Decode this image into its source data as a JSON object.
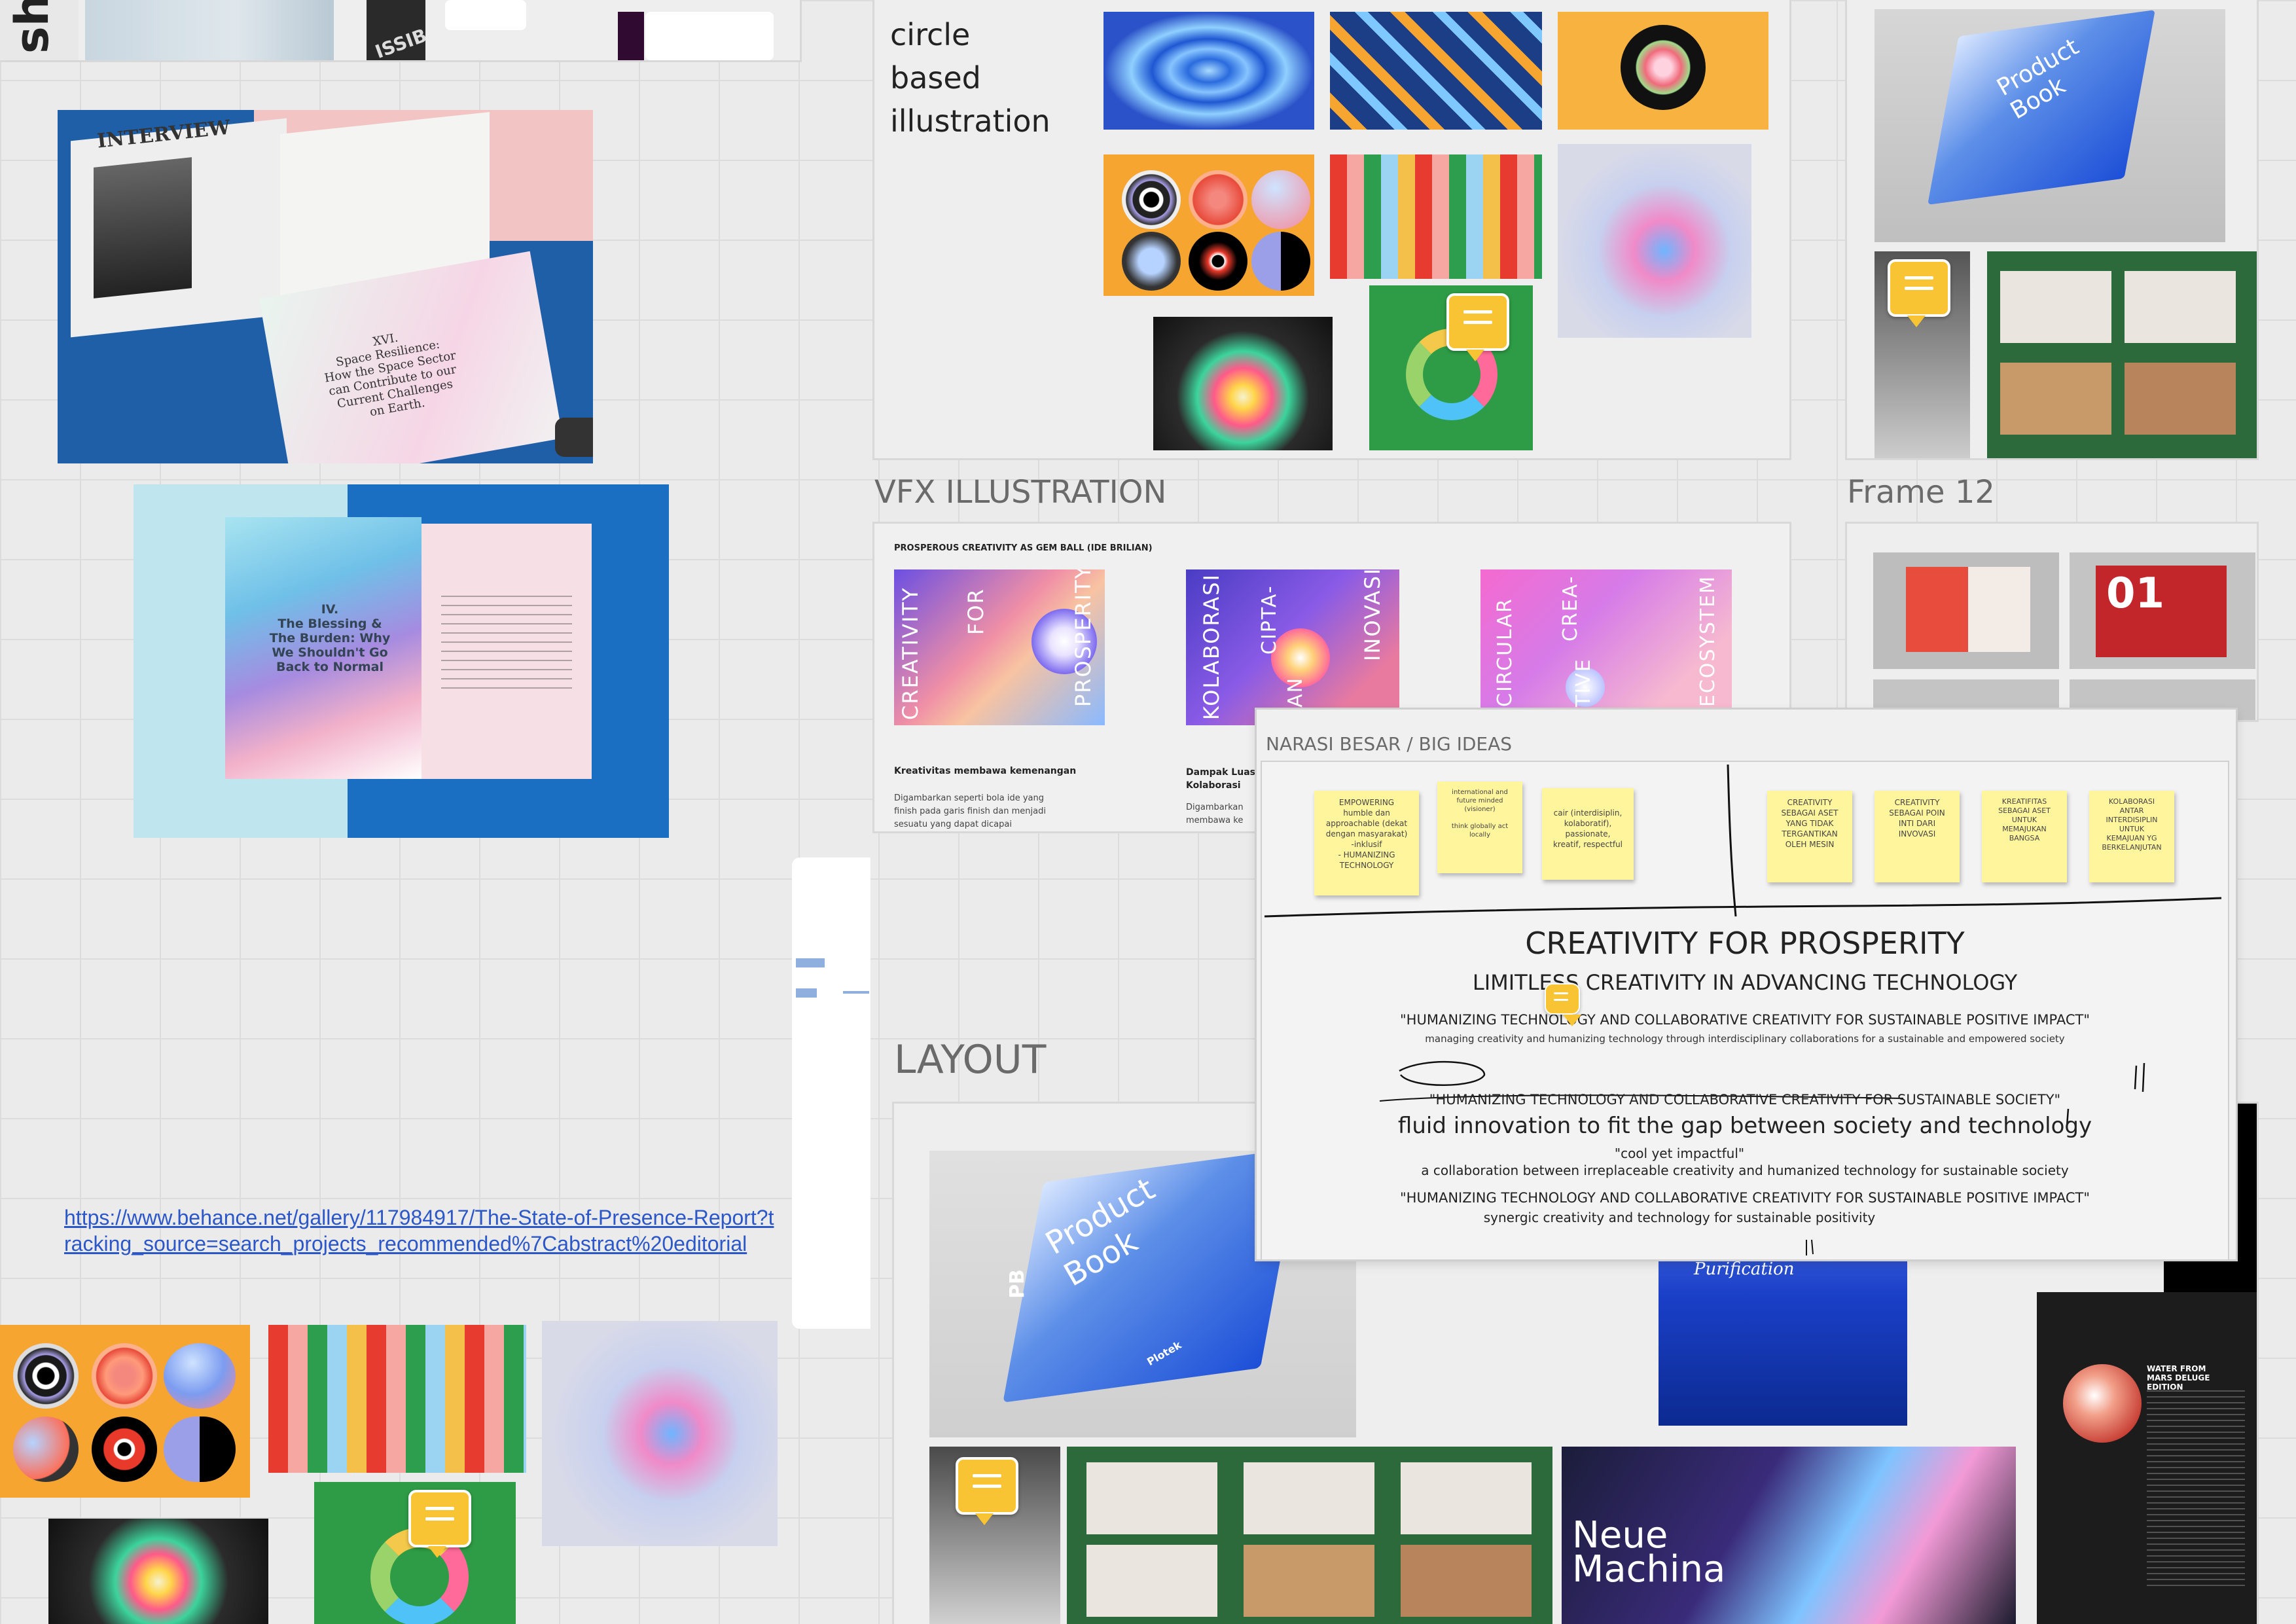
{
  "frames": {
    "circle_title": "circle\nbased\nillustration",
    "vfx_title": "VFX ILLUSTRATION",
    "frame12_title": "Frame 12",
    "layout_title": "LAYOUT",
    "narasi_title": "NARASI BESAR / BIG IDEAS"
  },
  "top_left": {
    "shape_text": "shap",
    "cover_text": "ISSIB"
  },
  "books": {
    "interview_header": "INTERVIEW",
    "chapter_title": "XVI.\nSpace Resilience:\nHow the Space Sector\ncan Contribute to our\nCurrent Challenges\non Earth.",
    "blessing_title": "IV.\nThe Blessing &\nThe Burden: Why\nWe Shouldn't Go\nBack to Normal"
  },
  "link": {
    "url": "https://www.behance.net/gallery/117984917/The-State-of-Presence-Report?tracking_source=search_projects_recommended%7Cabstract%20editorial"
  },
  "vfx": {
    "header": "PROSPEROUS CREATIVITY AS GEM BALL (IDE BRILIAN)",
    "card1_words": [
      "CREATIVITY",
      "FOR",
      "PROSPERITY"
    ],
    "card2_words": [
      "KOLABORASI",
      "CIPTA-",
      "KAN",
      "INOVASI"
    ],
    "card3_words": [
      "CIRCULAR",
      "CREA-",
      "TIVE",
      "ECOSYSTEM"
    ],
    "caption1_title": "Kreativitas membawa kemenangan",
    "caption1_body": "Digambarkan seperti bola ide yang\nfinish pada garis finish dan menjadi\nsesuatu yang dapat dicapai",
    "caption2_title": "Dampak Luas\nKolaborasi",
    "caption2_body": "Digambarkan\nmembawa ke"
  },
  "product_book": {
    "title": "Product Book",
    "brand": "Plotek",
    "side": "PB"
  },
  "neue": {
    "title": "Neue\nMachina",
    "tag": "Purification"
  },
  "dark_poster": {
    "heading": "WATER FROM MARS DELUGE EDITION"
  },
  "big_ideas": {
    "stickies_left": [
      "EMPOWERING\nhumble dan\napproachable (dekat\ndengan masyarakat)\n-inklusif\n- HUMANIZING\nTECHNOLOGY",
      "international and\nfuture minded\n(visioner)\n\nthink globally act\nlocally",
      "cair (interdisiplin,\nkolaboratif),\npassionate,\nkreatif, respectful"
    ],
    "stickies_right": [
      "CREATIVITY\nSEBAGAI ASET\nYANG TIDAK\nTERGANTIKAN\nOLEH MESIN",
      "CREATIVITY\nSEBAGAI POIN\nINTI DARI\nINVOVASI",
      "KREATIFITAS\nSEBAGAI ASET\nUNTUK\nMEMAJUKAN\nBANGSA",
      "KOLABORASI\nANTAR\nINTERDISIPLIN\nUNTUK\nKEMAJUAN YG\nBERKELANJUTAN"
    ],
    "headline": "CREATIVITY FOR PROSPERITY",
    "subhead": "LIMITLESS CREATIVITY IN ADVANCING TECHNOLOGY",
    "quote1": "\"HUMANIZING TECHNOLOGY AND COLLABORATIVE CREATIVITY FOR SUSTAINABLE POSITIVE IMPACT\"",
    "quote1_sub": "managing creativity and humanizing technology through interdisciplinary collaborations for a sustainable and empowered society",
    "quote2": "\"HUMANIZING TECHNOLOGY AND COLLABORATIVE CREATIVITY FOR SUSTAINABLE SOCIETY\"",
    "tagline": "fluid innovation to fit the gap between society and technology",
    "cool": "\"cool yet impactful\"",
    "cool_sub": "a collaboration between irreplaceable creativity and humanized technology for sustainable society",
    "quote3": "\"HUMANIZING TECHNOLOGY AND COLLABORATIVE CREATIVITY FOR SUSTAINABLE POSITIVE IMPACT\"",
    "quote3_sub": "synergic creativity and technology for sustainable positivity"
  },
  "frame12": {
    "number": "01"
  },
  "colors": {
    "comment": "#f9c433",
    "sticky": "#fff59d",
    "link": "#2b57c9"
  }
}
